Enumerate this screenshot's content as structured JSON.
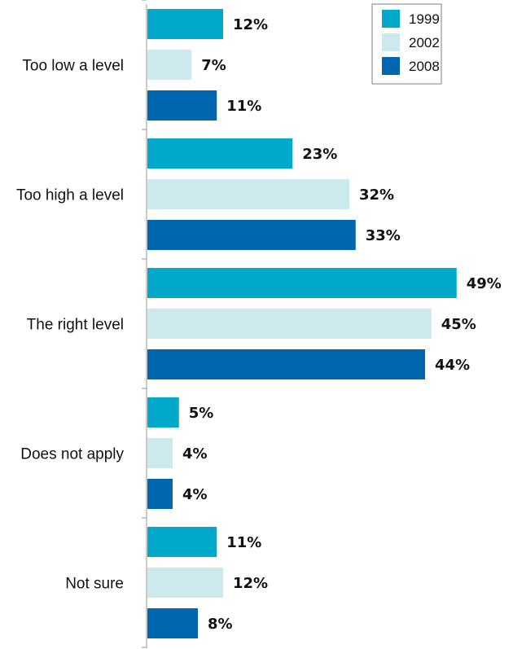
{
  "chart_data": {
    "type": "bar",
    "orientation": "horizontal",
    "categories": [
      "Too low a level",
      "Too high a level",
      "The right level",
      "Does not apply",
      "Not sure"
    ],
    "series": [
      {
        "name": "1999",
        "color": "#00a9c9",
        "values": [
          12,
          23,
          49,
          5,
          11
        ],
        "labels": [
          "12%",
          "23%",
          "49%",
          "5%",
          "11%"
        ]
      },
      {
        "name": "2002",
        "color": "#cce9ee",
        "values": [
          7,
          32,
          45,
          4,
          12
        ],
        "labels": [
          "7%",
          "32%",
          "45%",
          "4%",
          "12%"
        ]
      },
      {
        "name": "2008",
        "color": "#0066b0",
        "values": [
          11,
          33,
          44,
          4,
          8
        ],
        "labels": [
          "11%",
          "33%",
          "44%",
          "4%",
          "8%"
        ]
      }
    ],
    "unit": "%",
    "xlim": [
      0,
      50
    ],
    "grid": false,
    "legend_position": "top-right",
    "title": "",
    "xlabel": "",
    "ylabel": ""
  }
}
